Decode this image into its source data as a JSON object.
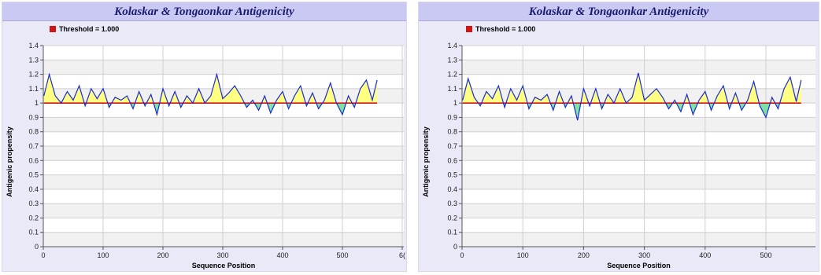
{
  "chart_data": [
    {
      "type": "line",
      "title": "Kolaskar & Tongaonkar Antigenicity",
      "legend": {
        "label": "Threshold = 1.000",
        "color": "#d11414",
        "placement": "top-left"
      },
      "threshold": 1.0,
      "xlabel": "Sequence Position",
      "ylabel": "Antigenic propensity",
      "xlim": [
        0,
        600
      ],
      "ylim": [
        0,
        1.4
      ],
      "x_ticks": [
        "0",
        "100",
        "200",
        "300",
        "400",
        "500",
        "6("
      ],
      "y_ticks": [
        "0",
        "0.1",
        "0.2",
        "0.3",
        "0.4",
        "0.5",
        "0.6",
        "0.7",
        "0.8",
        "0.9",
        "1",
        "1.1",
        "1.2",
        "1.3",
        "1.4"
      ],
      "grid": true,
      "colors": {
        "line": "#1a2bd6",
        "threshold": "#d11414",
        "above": "#ffff80",
        "below": "#7fe0a6"
      },
      "series": [
        {
          "x": [
            1,
            10,
            20,
            30,
            40,
            50,
            60,
            70,
            80,
            90,
            100,
            110,
            120,
            130,
            140,
            150,
            160,
            170,
            180,
            190,
            200,
            210,
            220,
            230,
            240,
            250,
            260,
            270,
            280,
            290,
            300,
            310,
            320,
            330,
            340,
            350,
            360,
            370,
            380,
            390,
            400,
            410,
            420,
            430,
            440,
            450,
            460,
            470,
            480,
            490,
            500,
            510,
            520,
            530,
            540,
            550,
            558
          ],
          "values": [
            1.05,
            1.2,
            1.05,
            1.0,
            1.08,
            1.02,
            1.12,
            0.98,
            1.1,
            1.03,
            1.1,
            0.97,
            1.04,
            1.02,
            1.05,
            0.96,
            1.08,
            0.98,
            1.06,
            0.92,
            1.1,
            0.98,
            1.08,
            0.97,
            1.05,
            1.0,
            1.1,
            1.0,
            1.05,
            1.2,
            1.03,
            1.07,
            1.12,
            1.05,
            0.97,
            1.02,
            0.95,
            1.05,
            0.93,
            1.02,
            1.08,
            0.96,
            1.05,
            1.12,
            0.98,
            1.07,
            0.96,
            1.02,
            1.14,
            1.0,
            0.92,
            1.05,
            0.97,
            1.1,
            1.16,
            1.02,
            1.16
          ]
        }
      ]
    },
    {
      "type": "line",
      "title": "Kolaskar & Tongaonkar Antigenicity",
      "legend": {
        "label": "Threshold = 1.000",
        "color": "#d11414",
        "placement": "top-left"
      },
      "threshold": 1.0,
      "xlabel": "Sequence Position",
      "ylabel": "Antigenic propensity",
      "xlim": [
        0,
        560
      ],
      "ylim": [
        0,
        1.4
      ],
      "x_ticks": [
        "0",
        "100",
        "200",
        "300",
        "400",
        "500"
      ],
      "y_ticks": [
        "0",
        "0.1",
        "0.2",
        "0.3",
        "0.4",
        "0.5",
        "0.6",
        "0.7",
        "0.8",
        "0.9",
        "1",
        "1.1",
        "1.2",
        "1.3",
        "1.4"
      ],
      "grid": true,
      "colors": {
        "line": "#1a2bd6",
        "threshold": "#d11414",
        "above": "#ffff80",
        "below": "#7fe0a6"
      },
      "series": [
        {
          "x": [
            1,
            10,
            20,
            30,
            40,
            50,
            60,
            70,
            80,
            90,
            100,
            110,
            120,
            130,
            140,
            150,
            160,
            170,
            180,
            190,
            200,
            210,
            220,
            230,
            240,
            250,
            260,
            270,
            280,
            290,
            300,
            310,
            320,
            330,
            340,
            350,
            360,
            370,
            380,
            390,
            400,
            410,
            420,
            430,
            440,
            450,
            460,
            470,
            480,
            490,
            500,
            510,
            520,
            530,
            540,
            550,
            558
          ],
          "values": [
            1.02,
            1.17,
            1.04,
            0.98,
            1.08,
            1.03,
            1.12,
            0.97,
            1.1,
            1.02,
            1.12,
            0.96,
            1.04,
            1.02,
            1.06,
            0.95,
            1.08,
            0.97,
            1.05,
            0.88,
            1.1,
            0.98,
            1.1,
            0.96,
            1.06,
            1.0,
            1.1,
            1.0,
            1.04,
            1.21,
            1.02,
            1.06,
            1.1,
            1.04,
            0.96,
            1.02,
            0.94,
            1.06,
            0.92,
            1.02,
            1.08,
            0.95,
            1.05,
            1.12,
            0.96,
            1.07,
            0.95,
            1.02,
            1.15,
            0.98,
            0.9,
            1.04,
            0.96,
            1.1,
            1.18,
            1.01,
            1.16
          ]
        }
      ]
    }
  ]
}
